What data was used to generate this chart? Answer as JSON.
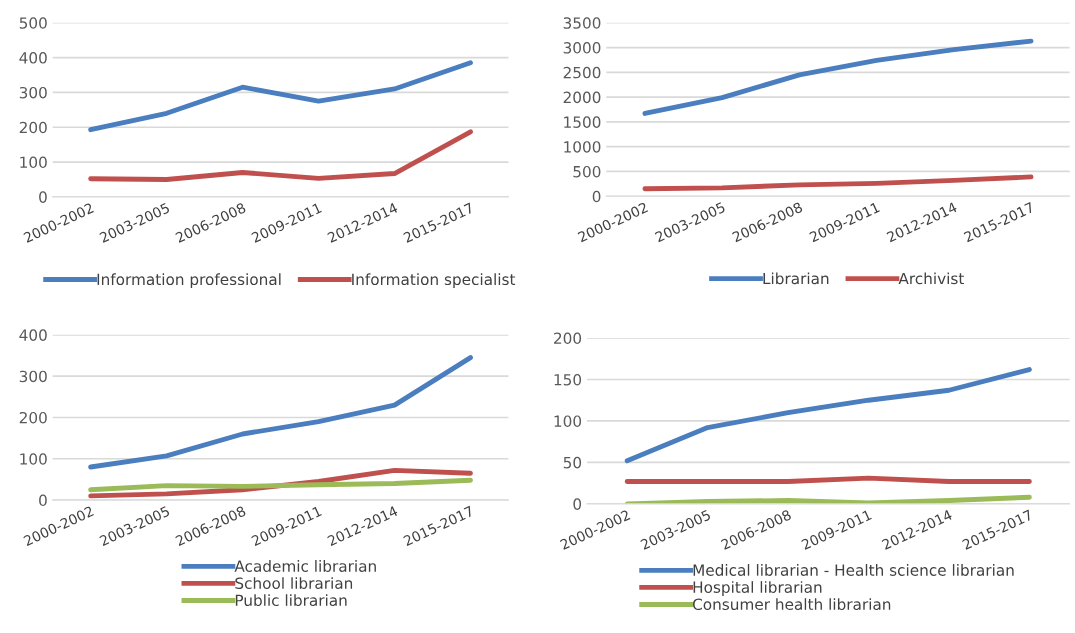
{
  "chart_data": [
    {
      "type": "line",
      "categories": [
        "2000-2002",
        "2003-2005",
        "2006-2008",
        "2009-2011",
        "2012-2014",
        "2015-2017"
      ],
      "ylim": [
        0,
        500
      ],
      "yticks": [
        0,
        100,
        200,
        300,
        400,
        500
      ],
      "grid": "y",
      "legend": "bottom",
      "series": [
        {
          "name": "Information professional",
          "color": "#4a7ebf",
          "values": [
            193,
            240,
            315,
            275,
            310,
            385
          ]
        },
        {
          "name": "Information specialist",
          "color": "#c0504d",
          "values": [
            52,
            50,
            70,
            53,
            67,
            187
          ]
        }
      ]
    },
    {
      "type": "line",
      "categories": [
        "2000-2002",
        "2003-2005",
        "2006-2008",
        "2009-2011",
        "2012-2014",
        "2015-2017"
      ],
      "ylim": [
        0,
        3500
      ],
      "yticks": [
        0,
        500,
        1000,
        1500,
        2000,
        2500,
        3000,
        3500
      ],
      "grid": "y",
      "legend": "bottom",
      "series": [
        {
          "name": "Librarian",
          "color": "#4a7ebf",
          "values": [
            1670,
            1990,
            2450,
            2740,
            2960,
            3130
          ]
        },
        {
          "name": "Archivist",
          "color": "#c0504d",
          "values": [
            150,
            170,
            230,
            260,
            320,
            390
          ]
        }
      ]
    },
    {
      "type": "line",
      "categories": [
        "2000-2002",
        "2003-2005",
        "2006-2008",
        "2009-2011",
        "2012-2014",
        "2015-2017"
      ],
      "ylim": [
        0,
        400
      ],
      "yticks": [
        0,
        100,
        200,
        300,
        400
      ],
      "grid": "y",
      "legend": "bottom",
      "series": [
        {
          "name": "Academic librarian",
          "color": "#4a7ebf",
          "values": [
            80,
            107,
            160,
            190,
            230,
            345
          ]
        },
        {
          "name": "School librarian",
          "color": "#c0504d",
          "values": [
            10,
            15,
            25,
            45,
            72,
            65
          ]
        },
        {
          "name": "Public librarian",
          "color": "#9bbb59",
          "values": [
            25,
            35,
            33,
            37,
            40,
            48
          ]
        }
      ]
    },
    {
      "type": "line",
      "categories": [
        "2000-2002",
        "2003-2005",
        "2006-2008",
        "2009-2011",
        "2012-2014",
        "2015-2017"
      ],
      "ylim": [
        0,
        200
      ],
      "yticks": [
        0,
        50,
        100,
        150,
        200
      ],
      "grid": "y",
      "legend": "bottom",
      "series": [
        {
          "name": "Medical librarian - Health science librarian",
          "color": "#4a7ebf",
          "values": [
            52,
            92,
            110,
            125,
            137,
            162
          ]
        },
        {
          "name": "Hospital librarian",
          "color": "#c0504d",
          "values": [
            27,
            27,
            27,
            31,
            27,
            27
          ]
        },
        {
          "name": "Consumer health librarian",
          "color": "#9bbb59",
          "values": [
            0,
            3,
            4,
            1,
            4,
            8
          ]
        }
      ]
    }
  ]
}
